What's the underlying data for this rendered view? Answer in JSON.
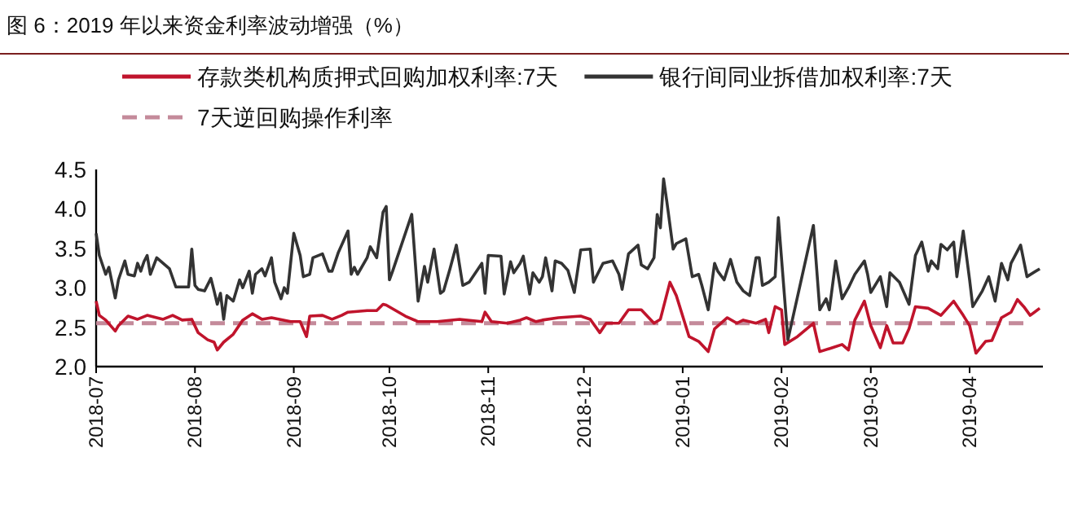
{
  "chart_data": {
    "type": "line",
    "title": "图 6：2019 年以来资金利率波动增强（%）",
    "xlim": [
      "2018-07-01",
      "2019-04-24"
    ],
    "xticks": [
      "2018-07",
      "2018-08",
      "2018-09",
      "2018-10",
      "2018-11",
      "2018-12",
      "2019-01",
      "2019-02",
      "2019-03",
      "2019-04"
    ],
    "ylim": [
      2.0,
      4.5
    ],
    "yticks": [
      {
        "value": 2.0,
        "label": "2.0"
      },
      {
        "value": 2.5,
        "label": "2.5"
      },
      {
        "value": 3.0,
        "label": "3.0"
      },
      {
        "value": 3.5,
        "label": "3.5"
      },
      {
        "value": 4.0,
        "label": "4.0"
      },
      {
        "value": 4.5,
        "label": "4.5"
      }
    ],
    "legend": "top",
    "series": [
      {
        "name": "存款类机构质押式回购加权利率:7天",
        "color": "#c0142c",
        "x": [
          "2018-07-01",
          "2018-07-02",
          "2018-07-04",
          "2018-07-07",
          "2018-07-08",
          "2018-07-11",
          "2018-07-14",
          "2018-07-17",
          "2018-07-22",
          "2018-07-25",
          "2018-07-28",
          "2018-07-31",
          "2018-08-02",
          "2018-08-05",
          "2018-08-07",
          "2018-08-08",
          "2018-08-10",
          "2018-08-13",
          "2018-08-16",
          "2018-08-19",
          "2018-08-22",
          "2018-08-25",
          "2018-08-31",
          "2018-09-03",
          "2018-09-05",
          "2018-09-06",
          "2018-09-10",
          "2018-09-13",
          "2018-09-16",
          "2018-09-18",
          "2018-09-24",
          "2018-09-27",
          "2018-09-29",
          "2018-09-30",
          "2018-10-06",
          "2018-10-10",
          "2018-10-16",
          "2018-10-23",
          "2018-10-30",
          "2018-10-31",
          "2018-11-02",
          "2018-11-07",
          "2018-11-11",
          "2018-11-13",
          "2018-11-16",
          "2018-11-18",
          "2018-11-23",
          "2018-11-30",
          "2018-12-03",
          "2018-12-06",
          "2018-12-08",
          "2018-12-12",
          "2018-12-15",
          "2018-12-19",
          "2018-12-23",
          "2018-12-25",
          "2018-12-28",
          "2018-12-30",
          "2019-01-03",
          "2019-01-06",
          "2019-01-09",
          "2019-01-11",
          "2019-01-15",
          "2019-01-18",
          "2019-01-20",
          "2019-01-24",
          "2019-01-27",
          "2019-01-28",
          "2019-01-30",
          "2019-02-01",
          "2019-02-02",
          "2019-02-06",
          "2019-02-11",
          "2019-02-13",
          "2019-02-17",
          "2019-02-20",
          "2019-02-22",
          "2019-02-24",
          "2019-02-27",
          "2019-03-01",
          "2019-03-04",
          "2019-03-06",
          "2019-03-08",
          "2019-03-11",
          "2019-03-13",
          "2019-03-15",
          "2019-03-19",
          "2019-03-23",
          "2019-03-27",
          "2019-03-30",
          "2019-04-01",
          "2019-04-03",
          "2019-04-06",
          "2019-04-08",
          "2019-04-11",
          "2019-04-14",
          "2019-04-16",
          "2019-04-18",
          "2019-04-20",
          "2019-04-23"
        ],
        "values": [
          2.83,
          2.65,
          2.59,
          2.45,
          2.52,
          2.64,
          2.6,
          2.65,
          2.6,
          2.65,
          2.59,
          2.6,
          2.43,
          2.34,
          2.31,
          2.21,
          2.31,
          2.41,
          2.59,
          2.67,
          2.6,
          2.62,
          2.57,
          2.57,
          2.38,
          2.64,
          2.65,
          2.6,
          2.65,
          2.69,
          2.71,
          2.71,
          2.79,
          2.78,
          2.64,
          2.57,
          2.57,
          2.6,
          2.57,
          2.69,
          2.57,
          2.55,
          2.59,
          2.62,
          2.57,
          2.59,
          2.62,
          2.64,
          2.6,
          2.43,
          2.55,
          2.55,
          2.72,
          2.72,
          2.55,
          2.6,
          3.07,
          2.9,
          2.38,
          2.32,
          2.19,
          2.48,
          2.62,
          2.55,
          2.59,
          2.55,
          2.6,
          2.43,
          2.76,
          2.72,
          2.28,
          2.38,
          2.55,
          2.19,
          2.24,
          2.28,
          2.21,
          2.59,
          2.83,
          2.52,
          2.24,
          2.52,
          2.3,
          2.3,
          2.48,
          2.76,
          2.74,
          2.65,
          2.83,
          2.65,
          2.52,
          2.17,
          2.32,
          2.33,
          2.62,
          2.69,
          2.85,
          2.76,
          2.65,
          2.74
        ]
      },
      {
        "name": "银行间同业拆借加权利率:7天",
        "color": "#333333",
        "x": [
          "2018-07-01",
          "2018-07-02",
          "2018-07-04",
          "2018-07-05",
          "2018-07-07",
          "2018-07-08",
          "2018-07-10",
          "2018-07-11",
          "2018-07-13",
          "2018-07-14",
          "2018-07-15",
          "2018-07-16",
          "2018-07-17",
          "2018-07-18",
          "2018-07-20",
          "2018-07-22",
          "2018-07-24",
          "2018-07-26",
          "2018-07-30",
          "2018-07-31",
          "2018-08-01",
          "2018-08-02",
          "2018-08-04",
          "2018-08-06",
          "2018-08-07",
          "2018-08-08",
          "2018-08-09",
          "2018-08-10",
          "2018-08-11",
          "2018-08-13",
          "2018-08-15",
          "2018-08-16",
          "2018-08-18",
          "2018-08-19",
          "2018-08-20",
          "2018-08-22",
          "2018-08-23",
          "2018-08-25",
          "2018-08-26",
          "2018-08-28",
          "2018-08-29",
          "2018-08-30",
          "2018-09-01",
          "2018-09-03",
          "2018-09-04",
          "2018-09-06",
          "2018-09-07",
          "2018-09-10",
          "2018-09-12",
          "2018-09-13",
          "2018-09-15",
          "2018-09-18",
          "2018-09-19",
          "2018-09-20",
          "2018-09-21",
          "2018-09-24",
          "2018-09-25",
          "2018-09-27",
          "2018-09-29",
          "2018-09-30",
          "2018-10-01",
          "2018-10-02",
          "2018-10-08",
          "2018-10-10",
          "2018-10-12",
          "2018-10-13",
          "2018-10-15",
          "2018-10-17",
          "2018-10-18",
          "2018-10-20",
          "2018-10-22",
          "2018-10-24",
          "2018-10-26",
          "2018-10-30",
          "2018-10-31",
          "2018-11-01",
          "2018-11-05",
          "2018-11-06",
          "2018-11-08",
          "2018-11-09",
          "2018-11-11",
          "2018-11-12",
          "2018-11-14",
          "2018-11-15",
          "2018-11-17",
          "2018-11-18",
          "2018-11-19",
          "2018-11-21",
          "2018-11-22",
          "2018-11-24",
          "2018-11-26",
          "2018-11-28",
          "2018-11-30",
          "2018-12-03",
          "2018-12-04",
          "2018-12-07",
          "2018-12-10",
          "2018-12-12",
          "2018-12-13",
          "2018-12-15",
          "2018-12-18",
          "2018-12-19",
          "2018-12-21",
          "2018-12-23",
          "2018-12-24",
          "2018-12-25",
          "2018-12-26",
          "2018-12-27",
          "2018-12-29",
          "2018-12-30",
          "2019-01-02",
          "2019-01-04",
          "2019-01-06",
          "2019-01-07",
          "2019-01-09",
          "2019-01-11",
          "2019-01-12",
          "2019-01-14",
          "2019-01-16",
          "2019-01-18",
          "2019-01-20",
          "2019-01-22",
          "2019-01-24",
          "2019-01-25",
          "2019-01-26",
          "2019-01-28",
          "2019-01-30",
          "2019-01-31",
          "2019-02-03",
          "2019-02-11",
          "2019-02-13",
          "2019-02-15",
          "2019-02-16",
          "2019-02-18",
          "2019-02-20",
          "2019-02-22",
          "2019-02-24",
          "2019-02-27",
          "2019-02-28",
          "2019-03-01",
          "2019-03-04",
          "2019-03-06",
          "2019-03-07",
          "2019-03-10",
          "2019-03-13",
          "2019-03-15",
          "2019-03-17",
          "2019-03-19",
          "2019-03-20",
          "2019-03-22",
          "2019-03-23",
          "2019-03-25",
          "2019-03-27",
          "2019-03-28",
          "2019-03-30",
          "2019-04-01",
          "2019-04-02",
          "2019-04-05",
          "2019-04-07",
          "2019-04-09",
          "2019-04-11",
          "2019-04-13",
          "2019-04-14",
          "2019-04-17",
          "2019-04-19",
          "2019-04-23"
        ],
        "values": [
          3.69,
          3.41,
          3.17,
          3.26,
          2.87,
          3.1,
          3.34,
          3.17,
          3.15,
          3.31,
          3.21,
          3.33,
          3.41,
          3.17,
          3.38,
          3.31,
          3.24,
          3.01,
          3.01,
          3.49,
          3.03,
          2.98,
          2.96,
          3.12,
          2.96,
          2.79,
          2.93,
          2.6,
          2.9,
          2.83,
          3.1,
          3.0,
          3.21,
          2.93,
          3.17,
          3.24,
          3.15,
          3.38,
          3.07,
          2.86,
          3.0,
          2.93,
          3.69,
          3.41,
          3.14,
          3.17,
          3.38,
          3.43,
          3.21,
          3.21,
          3.45,
          3.72,
          3.17,
          3.26,
          3.17,
          3.38,
          3.52,
          3.38,
          3.96,
          4.03,
          3.1,
          3.21,
          3.93,
          2.83,
          3.27,
          3.07,
          3.49,
          2.93,
          2.96,
          3.24,
          3.54,
          3.03,
          3.07,
          3.31,
          2.93,
          3.41,
          3.4,
          2.92,
          3.33,
          3.19,
          3.31,
          3.4,
          2.92,
          3.19,
          3.07,
          3.14,
          3.38,
          2.96,
          3.34,
          3.31,
          3.22,
          2.94,
          3.48,
          3.49,
          3.07,
          3.31,
          3.34,
          3.17,
          2.98,
          3.43,
          3.54,
          3.29,
          3.24,
          3.38,
          3.93,
          3.76,
          4.38,
          4.1,
          3.49,
          3.56,
          3.62,
          3.14,
          3.17,
          3.03,
          2.72,
          3.31,
          3.21,
          3.1,
          3.36,
          3.07,
          2.96,
          2.9,
          3.38,
          3.38,
          3.03,
          3.07,
          3.14,
          3.89,
          2.34,
          3.79,
          2.72,
          2.86,
          2.72,
          3.34,
          2.86,
          3.0,
          3.17,
          3.34,
          3.17,
          2.94,
          3.14,
          2.76,
          3.19,
          3.07,
          2.79,
          3.41,
          3.58,
          3.21,
          3.34,
          3.24,
          3.55,
          3.48,
          3.58,
          3.14,
          3.72,
          3.1,
          2.76,
          2.96,
          3.14,
          2.83,
          3.31,
          3.1,
          3.31,
          3.54,
          3.14,
          3.24
        ]
      }
    ],
    "ref_lines": [
      {
        "axis": "y",
        "value": 2.55,
        "label": "7天逆回购操作利率",
        "color": "#c48a9a",
        "line_style": "dashed"
      }
    ]
  }
}
